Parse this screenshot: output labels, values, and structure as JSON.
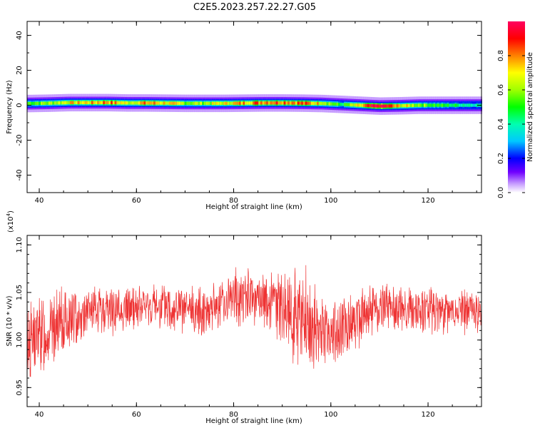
{
  "title": "C2E5.2023.257.22.27.G05",
  "chart_data": [
    {
      "type": "heatmap",
      "xlabel": "Height of straight line (km)",
      "ylabel": "Frequency (Hz)",
      "xlim": [
        37.5,
        131
      ],
      "ylim": [
        -50,
        48
      ],
      "xticks": [
        40,
        60,
        80,
        100,
        120
      ],
      "yticks": [
        -40,
        -20,
        0,
        20,
        40
      ],
      "colorbar": {
        "label": "Normalized spectral amplitude",
        "range": [
          0,
          1
        ],
        "ticks": [
          0.0,
          0.2,
          0.4,
          0.6,
          0.8
        ],
        "tick_labels": [
          "0.0",
          "0.2",
          "0.4",
          "0.6",
          "0.8"
        ]
      },
      "ridge": [
        {
          "x": 38,
          "freq": 1.0,
          "amp": 0.55
        },
        {
          "x": 42,
          "freq": 1.2,
          "amp": 0.6
        },
        {
          "x": 46,
          "freq": 1.5,
          "amp": 0.7
        },
        {
          "x": 50,
          "freq": 1.5,
          "amp": 0.72
        },
        {
          "x": 54,
          "freq": 1.5,
          "amp": 0.82
        },
        {
          "x": 58,
          "freq": 1.3,
          "amp": 0.65
        },
        {
          "x": 62,
          "freq": 1.3,
          "amp": 0.78
        },
        {
          "x": 66,
          "freq": 1.2,
          "amp": 0.72
        },
        {
          "x": 70,
          "freq": 1.1,
          "amp": 0.6
        },
        {
          "x": 74,
          "freq": 1.1,
          "amp": 0.62
        },
        {
          "x": 78,
          "freq": 1.1,
          "amp": 0.68
        },
        {
          "x": 82,
          "freq": 1.2,
          "amp": 0.78
        },
        {
          "x": 86,
          "freq": 1.3,
          "amp": 0.85
        },
        {
          "x": 90,
          "freq": 1.3,
          "amp": 0.86
        },
        {
          "x": 94,
          "freq": 1.2,
          "amp": 0.82
        },
        {
          "x": 98,
          "freq": 1.0,
          "amp": 0.7
        },
        {
          "x": 102,
          "freq": 0.5,
          "amp": 0.45
        },
        {
          "x": 106,
          "freq": 0.0,
          "amp": 0.7
        },
        {
          "x": 110,
          "freq": -0.5,
          "amp": 1.0
        },
        {
          "x": 114,
          "freq": -0.3,
          "amp": 0.7
        },
        {
          "x": 118,
          "freq": 0.0,
          "amp": 0.6
        },
        {
          "x": 122,
          "freq": 0.0,
          "amp": 0.5
        },
        {
          "x": 126,
          "freq": 0.0,
          "amp": 0.45
        },
        {
          "x": 130,
          "freq": 0.0,
          "amp": 0.4
        }
      ]
    },
    {
      "type": "line",
      "xlabel": "Height of straight line (km)",
      "ylabel": "SNR (10 * v/v)",
      "y_multiplier_label": "(x10^4)",
      "xlim": [
        37.5,
        131
      ],
      "ylim": [
        0.93,
        1.11
      ],
      "xticks": [
        40,
        60,
        80,
        100,
        120
      ],
      "yticks": [
        0.95,
        1.0,
        1.05,
        1.1
      ],
      "ytick_labels": [
        "0.95",
        "1.00",
        "1.05",
        "1.10"
      ],
      "series": [
        {
          "color": "#ee3333",
          "x": [
            38,
            40,
            42,
            44,
            46,
            48,
            50,
            52,
            54,
            56,
            58,
            60,
            62,
            64,
            66,
            68,
            70,
            72,
            74,
            76,
            78,
            80,
            82,
            84,
            86,
            88,
            90,
            92,
            94,
            96,
            98,
            100,
            102,
            104,
            106,
            108,
            110,
            112,
            114,
            116,
            118,
            120,
            122,
            124,
            126,
            128,
            130
          ],
          "y": [
            1.0,
            1.005,
            1.01,
            1.015,
            1.02,
            1.025,
            1.028,
            1.03,
            1.032,
            1.03,
            1.032,
            1.034,
            1.035,
            1.035,
            1.035,
            1.033,
            1.03,
            1.03,
            1.032,
            1.035,
            1.04,
            1.045,
            1.045,
            1.042,
            1.04,
            1.04,
            1.035,
            1.03,
            1.02,
            1.01,
            1.01,
            1.008,
            1.01,
            1.02,
            1.025,
            1.03,
            1.035,
            1.035,
            1.033,
            1.03,
            1.03,
            1.03,
            1.03,
            1.03,
            1.03,
            1.03,
            1.03
          ],
          "spread": [
            0.035,
            0.035,
            0.03,
            0.03,
            0.028,
            0.025,
            0.022,
            0.02,
            0.02,
            0.02,
            0.02,
            0.02,
            0.02,
            0.02,
            0.02,
            0.02,
            0.02,
            0.02,
            0.02,
            0.02,
            0.022,
            0.025,
            0.025,
            0.025,
            0.025,
            0.025,
            0.03,
            0.04,
            0.05,
            0.04,
            0.03,
            0.025,
            0.025,
            0.025,
            0.025,
            0.022,
            0.02,
            0.02,
            0.02,
            0.02,
            0.02,
            0.02,
            0.02,
            0.02,
            0.02,
            0.02,
            0.02
          ]
        }
      ]
    }
  ]
}
